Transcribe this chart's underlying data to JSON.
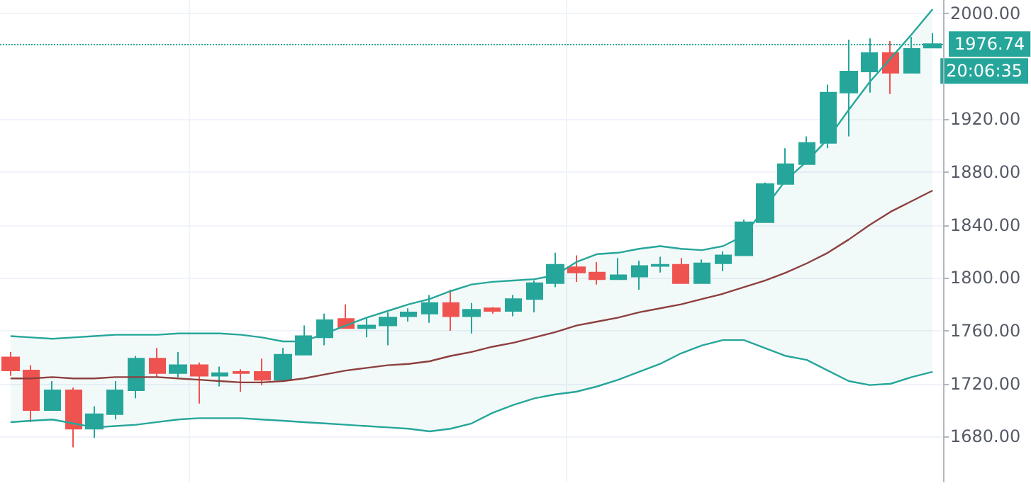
{
  "chart_data": {
    "type": "candlestick",
    "categories": [
      null,
      null,
      null,
      null,
      null,
      null,
      null,
      null,
      null,
      null,
      null,
      null,
      null,
      null,
      null,
      null,
      null,
      null,
      null,
      null,
      null,
      null,
      null,
      null,
      null,
      null,
      null,
      null,
      null,
      null,
      null,
      null,
      null,
      null,
      null,
      null,
      null,
      null,
      null,
      null,
      null,
      null,
      null,
      null,
      null
    ],
    "ohlc": [
      [
        1740,
        1744,
        1726,
        1730
      ],
      [
        1730,
        1734,
        1691,
        1700
      ],
      [
        1700,
        1722,
        1700,
        1715
      ],
      [
        1715,
        1717,
        1672,
        1686
      ],
      [
        1686,
        1703,
        1679,
        1697
      ],
      [
        1697,
        1722,
        1693,
        1715
      ],
      [
        1715,
        1741,
        1709,
        1739
      ],
      [
        1739,
        1747,
        1725,
        1728
      ],
      [
        1728,
        1744,
        1725,
        1734
      ],
      [
        1734,
        1736,
        1705,
        1726
      ],
      [
        1726,
        1733,
        1718,
        1728
      ],
      [
        1729,
        1731,
        1714,
        1728
      ],
      [
        1729,
        1739,
        1719,
        1723
      ],
      [
        1723,
        1747,
        1723,
        1742
      ],
      [
        1742,
        1764,
        1742,
        1756
      ],
      [
        1755,
        1773,
        1749,
        1768
      ],
      [
        1769,
        1780,
        1762,
        1762
      ],
      [
        1762,
        1770,
        1755,
        1764
      ],
      [
        1764,
        1774,
        1749,
        1770
      ],
      [
        1771,
        1777,
        1767,
        1774
      ],
      [
        1773,
        1787,
        1766,
        1781
      ],
      [
        1781,
        1791,
        1760,
        1771
      ],
      [
        1771,
        1781,
        1758,
        1776
      ],
      [
        1777,
        1778,
        1773,
        1775
      ],
      [
        1775,
        1787,
        1771,
        1784
      ],
      [
        1784,
        1798,
        1774,
        1796
      ],
      [
        1796,
        1819,
        1793,
        1810
      ],
      [
        1808,
        1817,
        1797,
        1804
      ],
      [
        1804,
        1812,
        1795,
        1799
      ],
      [
        1799,
        1815,
        1799,
        1802
      ],
      [
        1801,
        1813,
        1791,
        1809
      ],
      [
        1809,
        1816,
        1804,
        1810
      ],
      [
        1810,
        1815,
        1796,
        1796
      ],
      [
        1796,
        1814,
        1796,
        1811
      ],
      [
        1811,
        1820,
        1805,
        1817
      ],
      [
        1817,
        1844,
        1817,
        1842
      ],
      [
        1842,
        1872,
        1842,
        1871
      ],
      [
        1871,
        1898,
        1871,
        1886
      ],
      [
        1886,
        1907,
        1886,
        1902
      ],
      [
        1902,
        1946,
        1898,
        1940
      ],
      [
        1940,
        1980,
        1907,
        1956
      ],
      [
        1956,
        1981,
        1940,
        1970
      ],
      [
        1970,
        1979,
        1939,
        1955
      ],
      [
        1955,
        1982,
        1955,
        1973
      ],
      [
        1974,
        1985,
        1974,
        1976.74
      ]
    ],
    "colors": [
      "#ef5350",
      "#ef5350",
      "#26a69a",
      "#ef5350",
      "#26a69a",
      "#26a69a",
      "#26a69a",
      "#ef5350",
      "#26a69a",
      "#ef5350",
      "#26a69a",
      "#ef5350",
      "#ef5350",
      "#26a69a",
      "#26a69a",
      "#26a69a",
      "#ef5350",
      "#26a69a",
      "#26a69a",
      "#26a69a",
      "#26a69a",
      "#ef5350",
      "#26a69a",
      "#ef5350",
      "#26a69a",
      "#26a69a",
      "#26a69a",
      "#ef5350",
      "#ef5350",
      "#26a69a",
      "#26a69a",
      "#26a69a",
      "#ef5350",
      "#26a69a",
      "#26a69a",
      "#26a69a",
      "#26a69a",
      "#26a69a",
      "#26a69a",
      "#26a69a",
      "#26a69a",
      "#26a69a",
      "#ef5350",
      "#26a69a",
      "#26a69a"
    ],
    "series": [
      {
        "type": "line",
        "color": "#26a69a",
        "values": [
          1756,
          1755,
          1754,
          1755,
          1756,
          1757,
          1757,
          1757,
          1758,
          1758,
          1758,
          1757,
          1755,
          1752,
          1752,
          1758,
          1764,
          1770,
          1775,
          1780,
          1784,
          1790,
          1795,
          1797,
          1798,
          1799,
          1802,
          1812,
          1818,
          1819,
          1822,
          1824,
          1822,
          1821,
          1824,
          1832,
          1853,
          1874,
          1888,
          1905,
          1927,
          1948,
          1966,
          1984,
          2003
        ]
      },
      {
        "type": "line",
        "color": "#8d3f3f",
        "values": [
          1724,
          1724,
          1725,
          1724,
          1724,
          1725,
          1725,
          1725,
          1724,
          1723,
          1722,
          1721,
          1721,
          1722,
          1724,
          1727,
          1730,
          1732,
          1734,
          1735,
          1737,
          1741,
          1744,
          1748,
          1751,
          1755,
          1759,
          1764,
          1767,
          1770,
          1774,
          1777,
          1780,
          1784,
          1788,
          1793,
          1798,
          1804,
          1811,
          1819,
          1829,
          1840,
          1850,
          1858,
          1866
        ],
        "upper": [
          1756,
          1755,
          1754,
          1755,
          1756,
          1757,
          1757,
          1757,
          1758,
          1758,
          1758,
          1757,
          1755,
          1752,
          1752,
          1758,
          1764,
          1770,
          1775,
          1780,
          1784,
          1790,
          1795,
          1797,
          1798,
          1799,
          1802,
          1812,
          1818,
          1819,
          1822,
          1824,
          1822,
          1821,
          1824,
          1832,
          1853,
          1874,
          1888,
          1905,
          1927,
          1948,
          1966,
          1984,
          2003
        ],
        "lower": [
          1691,
          1692,
          1693,
          1690,
          1687,
          1688,
          1689,
          1691,
          1693,
          1694,
          1694,
          1694,
          1693,
          1692,
          1691,
          1690,
          1689,
          1688,
          1687,
          1686,
          1684,
          1686,
          1690,
          1698,
          1704,
          1709,
          1712,
          1714,
          1718,
          1723,
          1729,
          1735,
          1743,
          1749,
          1753,
          1753,
          1747,
          1741,
          1738,
          1730,
          1722,
          1719,
          1720,
          1725,
          1729
        ]
      },
      {
        "type": "line",
        "color": "#26a69a",
        "values": [
          1691,
          1692,
          1693,
          1690,
          1687,
          1688,
          1689,
          1691,
          1693,
          1694,
          1694,
          1694,
          1693,
          1692,
          1691,
          1690,
          1689,
          1688,
          1687,
          1686,
          1684,
          1686,
          1690,
          1698,
          1704,
          1709,
          1712,
          1714,
          1718,
          1723,
          1729,
          1735,
          1743,
          1749,
          1753,
          1753,
          1747,
          1741,
          1738,
          1730,
          1722,
          1719,
          1720,
          1725,
          1729
        ]
      }
    ],
    "ylim": [
      1646,
      2010
    ],
    "yticks": [
      {
        "value": 1680,
        "label": "1680.00"
      },
      {
        "value": 1720,
        "label": "1720.00"
      },
      {
        "value": 1760,
        "label": "1760.00"
      },
      {
        "value": 1800,
        "label": "1800.00"
      },
      {
        "value": 1840,
        "label": "1840.00"
      },
      {
        "value": 1880,
        "label": "1880.00"
      },
      {
        "value": 1920,
        "label": "1920.00"
      },
      {
        "value": 2000,
        "label": "2000.00"
      }
    ],
    "ref_lines": [
      {
        "axis": "y",
        "value": 1976.74,
        "label": "1976.74",
        "color": "#26a69a",
        "line_style": "dotted"
      }
    ],
    "annotations": [
      "20:06:35"
    ],
    "grid": true
  }
}
